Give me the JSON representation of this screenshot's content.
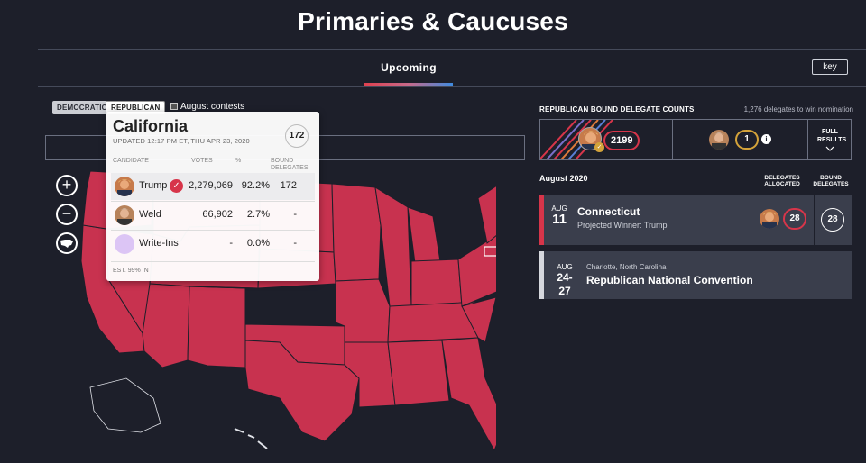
{
  "header": {
    "title": "Primaries & Caucuses",
    "tab": "Upcoming",
    "key_label": "key"
  },
  "map_controls": {
    "party_democratic": "DEMOCRATIC",
    "party_republican": "REPUBLICAN",
    "august_contests_label": "August contests",
    "zoom_in": "+",
    "zoom_out": "−"
  },
  "tooltip": {
    "state": "California",
    "updated": "UPDATED 12:17 PM ET, THU APR 23, 2020",
    "total_delegates": "172",
    "columns": {
      "candidate": "CANDIDATE",
      "votes": "VOTES",
      "pct": "%",
      "bound_delegates": "BOUND DELEGATES"
    },
    "rows": [
      {
        "name": "Trump",
        "votes": "2,279,069",
        "pct": "92.2%",
        "delegates": "172",
        "winner": true
      },
      {
        "name": "Weld",
        "votes": "66,902",
        "pct": "2.7%",
        "delegates": "-"
      },
      {
        "name": "Write-Ins",
        "votes": "-",
        "pct": "0.0%",
        "delegates": "-"
      }
    ],
    "est": "EST. 99% IN"
  },
  "delegates_panel": {
    "title": "REPUBLICAN BOUND DELEGATE COUNTS",
    "needed": "1,276 delegates to win nomination",
    "trump_count": "2199",
    "weld_count": "1",
    "info_icon": "i",
    "full_results": "FULL RESULTS"
  },
  "schedule": {
    "month": "August 2020",
    "col_allocated": "DELEGATES ALLOCATED",
    "col_bound": "BOUND DELEGATES",
    "events": [
      {
        "mon": "AUG",
        "day": "11",
        "state": "Connecticut",
        "sub": "Projected Winner: Trump",
        "allocated": "28",
        "bound": "28"
      },
      {
        "mon": "AUG",
        "day": "24-27",
        "location": "Charlotte, North Carolina",
        "event": "Republican National Convention"
      }
    ]
  },
  "colors": {
    "red": "#d7354a",
    "state_fill": "#c8324f",
    "bg": "#1d1f2a",
    "card": "#3a3e4c",
    "gold": "#d4a33a"
  }
}
